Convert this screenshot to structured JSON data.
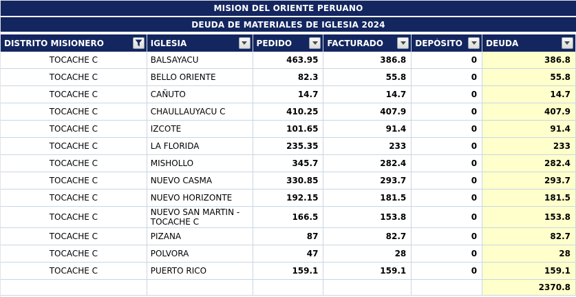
{
  "window": {
    "title": "MISION DEL ORIENTE PERUANO",
    "subtitle": "DEUDA DE MATERIALES DE IGLESIA 2024"
  },
  "colors": {
    "header_navy": "#13265F",
    "gridline": "#C9D6E2",
    "deuda_highlight": "#FFFFCC"
  },
  "table": {
    "columns": [
      {
        "key": "distrito",
        "label": "DISTRITO MISIONERO",
        "filter_state": "filtered",
        "icon": "funnel-filter-icon"
      },
      {
        "key": "iglesia",
        "label": "IGLESIA",
        "filter_state": "none",
        "icon": "dropdown-arrow-icon"
      },
      {
        "key": "pedido",
        "label": "PEDIDO",
        "filter_state": "none",
        "icon": "dropdown-arrow-icon"
      },
      {
        "key": "facturado",
        "label": "FACTURADO",
        "filter_state": "none",
        "icon": "dropdown-arrow-icon"
      },
      {
        "key": "deposito",
        "label": "DEPÓSITO",
        "filter_state": "none",
        "icon": "dropdown-arrow-icon"
      },
      {
        "key": "deuda",
        "label": "DEUDA",
        "filter_state": "none",
        "icon": "dropdown-arrow-icon"
      }
    ],
    "rows": [
      {
        "distrito": "TOCACHE C",
        "iglesia": "BALSAYACU",
        "pedido": "463.95",
        "facturado": "386.8",
        "deposito": "0",
        "deuda": "386.8"
      },
      {
        "distrito": "TOCACHE C",
        "iglesia": "BELLO ORIENTE",
        "pedido": "82.3",
        "facturado": "55.8",
        "deposito": "0",
        "deuda": "55.8"
      },
      {
        "distrito": "TOCACHE C",
        "iglesia": "CAÑUTO",
        "pedido": "14.7",
        "facturado": "14.7",
        "deposito": "0",
        "deuda": "14.7"
      },
      {
        "distrito": "TOCACHE C",
        "iglesia": "CHAULLAUYACU C",
        "pedido": "410.25",
        "facturado": "407.9",
        "deposito": "0",
        "deuda": "407.9"
      },
      {
        "distrito": "TOCACHE C",
        "iglesia": "IZCOTE",
        "pedido": "101.65",
        "facturado": "91.4",
        "deposito": "0",
        "deuda": "91.4"
      },
      {
        "distrito": "TOCACHE C",
        "iglesia": "LA FLORIDA",
        "pedido": "235.35",
        "facturado": "233",
        "deposito": "0",
        "deuda": "233"
      },
      {
        "distrito": "TOCACHE C",
        "iglesia": "MISHOLLO",
        "pedido": "345.7",
        "facturado": "282.4",
        "deposito": "0",
        "deuda": "282.4"
      },
      {
        "distrito": "TOCACHE C",
        "iglesia": "NUEVO CASMA",
        "pedido": "330.85",
        "facturado": "293.7",
        "deposito": "0",
        "deuda": "293.7"
      },
      {
        "distrito": "TOCACHE C",
        "iglesia": "NUEVO HORIZONTE",
        "pedido": "192.15",
        "facturado": "181.5",
        "deposito": "0",
        "deuda": "181.5"
      },
      {
        "distrito": "TOCACHE C",
        "iglesia": "NUEVO SAN MARTIN - TOCACHE C",
        "pedido": "166.5",
        "facturado": "153.8",
        "deposito": "0",
        "deuda": "153.8"
      },
      {
        "distrito": "TOCACHE C",
        "iglesia": "PIZANA",
        "pedido": "87",
        "facturado": "82.7",
        "deposito": "0",
        "deuda": "82.7"
      },
      {
        "distrito": "TOCACHE C",
        "iglesia": "POLVORA",
        "pedido": "47",
        "facturado": "28",
        "deposito": "0",
        "deuda": "28"
      },
      {
        "distrito": "TOCACHE C",
        "iglesia": "PUERTO RICO",
        "pedido": "159.1",
        "facturado": "159.1",
        "deposito": "0",
        "deuda": "159.1"
      }
    ],
    "total_row": {
      "distrito": "",
      "iglesia": "",
      "pedido": "",
      "facturado": "",
      "deposito": "",
      "deuda": "2370.8"
    }
  }
}
